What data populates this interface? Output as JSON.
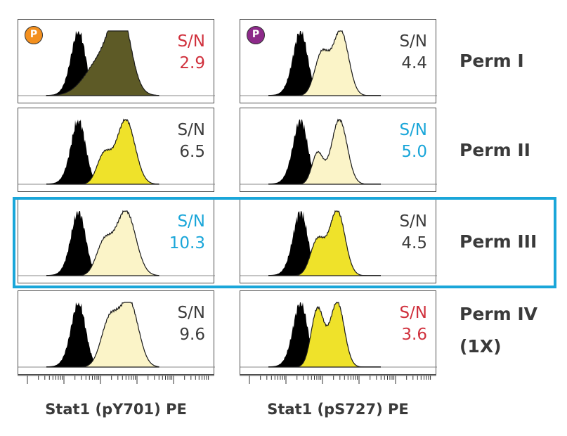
{
  "colors": {
    "black_fill": "#000000",
    "olive_fill": "#5d5a26",
    "yellow_fill": "#efe22a",
    "pale_fill": "#fbf4c8",
    "red_text": "#d0313d",
    "blue_text": "#1aa6d9",
    "gray_text": "#3c3c3c",
    "highlight": "#1aa6d9",
    "badge_orange": "#f3901f",
    "badge_purple": "#8d2a8a"
  },
  "badges": {
    "orange": "P",
    "purple": "P"
  },
  "row_labels": [
    "Perm I",
    "Perm II",
    "Perm III",
    "Perm IV",
    "(1X)"
  ],
  "x_labels": [
    "Stat1 (pY701) PE",
    "Stat1 (pS727) PE"
  ],
  "chart_data": {
    "type": "histogram-grid",
    "rows": [
      "Perm I",
      "Perm II",
      "Perm III",
      "Perm IV (1X)"
    ],
    "columns": [
      "Stat1 (pY701) PE",
      "Stat1 (pS727) PE"
    ],
    "highlighted_row": "Perm III",
    "panels": [
      {
        "row": 0,
        "col": 0,
        "sn_label": "S/N",
        "sn_value": "2.9",
        "sn_color": "red",
        "fill": "olive",
        "badge": "orange",
        "stim_peaks": [
          [
            122,
            24,
            0.6
          ],
          [
            146,
            14,
            1.0
          ]
        ]
      },
      {
        "row": 0,
        "col": 1,
        "sn_label": "S/N",
        "sn_value": "4.4",
        "sn_color": "gray",
        "fill": "pale",
        "badge": "purple",
        "stim_peaks": [
          [
            116,
            10,
            0.65
          ],
          [
            143,
            11,
            1.0
          ]
        ]
      },
      {
        "row": 1,
        "col": 0,
        "sn_label": "S/N",
        "sn_value": "6.5",
        "sn_color": "gray",
        "fill": "yellow",
        "stim_peaks": [
          [
            122,
            10,
            0.45
          ],
          [
            153,
            13,
            1.0
          ]
        ]
      },
      {
        "row": 1,
        "col": 1,
        "sn_label": "S/N",
        "sn_value": "5.0",
        "sn_color": "blue",
        "fill": "pale",
        "stim_peaks": [
          [
            110,
            8,
            0.48
          ],
          [
            141,
            11,
            1.0
          ]
        ]
      },
      {
        "row": 2,
        "col": 0,
        "sn_label": "S/N",
        "sn_value": "10.3",
        "sn_color": "blue",
        "fill": "pale",
        "stim_peaks": [
          [
            122,
            11,
            0.5
          ],
          [
            153,
            14,
            1.0
          ]
        ]
      },
      {
        "row": 2,
        "col": 1,
        "sn_label": "S/N",
        "sn_value": "4.5",
        "sn_color": "gray",
        "fill": "yellow",
        "stim_peaks": [
          [
            110,
            10,
            0.55
          ],
          [
            138,
            11,
            1.0
          ]
        ]
      },
      {
        "row": 3,
        "col": 0,
        "sn_label": "S/N",
        "sn_value": "9.6",
        "sn_color": "gray",
        "fill": "pale",
        "stim_peaks": [
          [
            130,
            12,
            0.72
          ],
          [
            158,
            13,
            1.0
          ]
        ]
      },
      {
        "row": 3,
        "col": 1,
        "sn_label": "S/N",
        "sn_value": "3.6",
        "sn_color": "red",
        "fill": "yellow",
        "stim_peaks": [
          [
            110,
            9,
            0.9
          ],
          [
            138,
            10,
            1.0
          ]
        ]
      }
    ]
  }
}
